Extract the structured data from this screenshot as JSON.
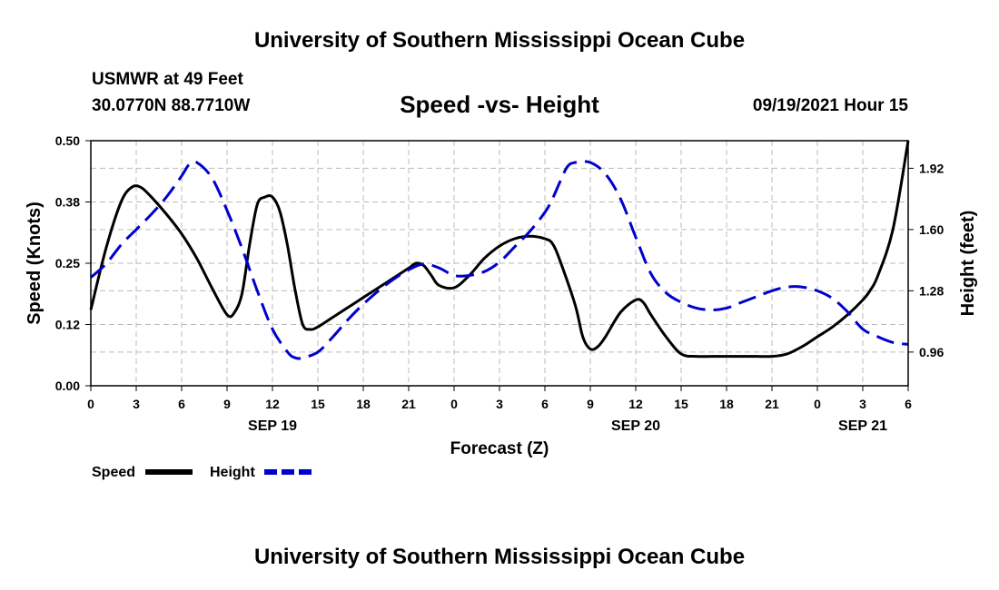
{
  "header": {
    "title_top": "University of Southern Mississippi Ocean Cube",
    "title_bottom": "University of Southern Mississippi Ocean Cube",
    "station": "USMWR at 49 Feet",
    "coords": "30.0770N  88.7710W",
    "run_time": "09/19/2021 Hour 15"
  },
  "chart_data": {
    "type": "line",
    "title": "Speed -vs- Height",
    "xlabel": "Forecast (Z)",
    "ylabel": "Speed (Knots)",
    "y2label": "Height (feet)",
    "x_unit": "hours from SEP 19 00Z",
    "xlim": [
      0,
      54
    ],
    "ylim": [
      0,
      0.5
    ],
    "y2lim": [
      0.784,
      2.064
    ],
    "x_ticks": [
      {
        "x": 0,
        "label": "0"
      },
      {
        "x": 3,
        "label": "3"
      },
      {
        "x": 6,
        "label": "6"
      },
      {
        "x": 9,
        "label": "9"
      },
      {
        "x": 12,
        "label": "12"
      },
      {
        "x": 15,
        "label": "15"
      },
      {
        "x": 18,
        "label": "18"
      },
      {
        "x": 21,
        "label": "21"
      },
      {
        "x": 24,
        "label": "0"
      },
      {
        "x": 27,
        "label": "3"
      },
      {
        "x": 30,
        "label": "6"
      },
      {
        "x": 33,
        "label": "9"
      },
      {
        "x": 36,
        "label": "12"
      },
      {
        "x": 39,
        "label": "15"
      },
      {
        "x": 42,
        "label": "18"
      },
      {
        "x": 45,
        "label": "21"
      },
      {
        "x": 48,
        "label": "0"
      },
      {
        "x": 51,
        "label": "3"
      },
      {
        "x": 54,
        "label": "6"
      }
    ],
    "date_labels": [
      {
        "x": 12,
        "label": "SEP 19"
      },
      {
        "x": 36,
        "label": "SEP 20"
      },
      {
        "x": 51,
        "label": "SEP 21"
      }
    ],
    "y_ticks": [
      {
        "value": 0,
        "label": "0.00"
      },
      {
        "value": 0.125,
        "label": "0.12"
      },
      {
        "value": 0.25,
        "label": "0.25"
      },
      {
        "value": 0.375,
        "label": "0.38"
      },
      {
        "value": 0.5,
        "label": "0.50"
      }
    ],
    "y2_ticks": [
      {
        "value": 0.96,
        "label": "0.96"
      },
      {
        "value": 1.28,
        "label": "1.28"
      },
      {
        "value": 1.6,
        "label": "1.60"
      },
      {
        "value": 1.92,
        "label": "1.92"
      }
    ],
    "series": [
      {
        "name": "Speed",
        "axis": "left",
        "color": "#000000",
        "style": "solid",
        "x": [
          0,
          1,
          2,
          2.7,
          3.3,
          4,
          5,
          6,
          7,
          8,
          9,
          9.5,
          10,
          10.5,
          11,
          11.5,
          12,
          12.5,
          13,
          13.5,
          14,
          14.5,
          15,
          16,
          17,
          18,
          19,
          20,
          21,
          21.5,
          22,
          22.5,
          23,
          24,
          25,
          26,
          27,
          28,
          29,
          30,
          30.5,
          31,
          32,
          32.5,
          33,
          33.5,
          34,
          35,
          36,
          36.5,
          37,
          38,
          39,
          40,
          41,
          42,
          43,
          44,
          45,
          46,
          47,
          48,
          49,
          50,
          51,
          51.5,
          52,
          53,
          54
        ],
        "values": [
          0.155,
          0.28,
          0.375,
          0.405,
          0.405,
          0.385,
          0.35,
          0.31,
          0.26,
          0.2,
          0.145,
          0.15,
          0.19,
          0.29,
          0.37,
          0.385,
          0.385,
          0.355,
          0.285,
          0.195,
          0.125,
          0.115,
          0.12,
          0.14,
          0.16,
          0.18,
          0.2,
          0.22,
          0.24,
          0.25,
          0.245,
          0.225,
          0.205,
          0.2,
          0.225,
          0.26,
          0.285,
          0.3,
          0.305,
          0.3,
          0.29,
          0.255,
          0.165,
          0.1,
          0.075,
          0.08,
          0.1,
          0.15,
          0.175,
          0.17,
          0.145,
          0.1,
          0.065,
          0.06,
          0.06,
          0.06,
          0.06,
          0.06,
          0.06,
          0.065,
          0.08,
          0.1,
          0.12,
          0.145,
          0.175,
          0.195,
          0.225,
          0.32,
          0.5
        ]
      },
      {
        "name": "Height",
        "axis": "right",
        "color": "#0000cc",
        "style": "dashed",
        "x": [
          0,
          1,
          2,
          3,
          4,
          5,
          6,
          6.5,
          7,
          8,
          9,
          10,
          11,
          12,
          13,
          13.5,
          14,
          15,
          16,
          17,
          18,
          19,
          20,
          21,
          22,
          23,
          24,
          25,
          26,
          27,
          28,
          29,
          30,
          30.5,
          31,
          31.5,
          32,
          33,
          34,
          35,
          36,
          37,
          38,
          39,
          40,
          41,
          42,
          43,
          44,
          45,
          46,
          47,
          48,
          49,
          50,
          51,
          52,
          53,
          54
        ],
        "values": [
          1.35,
          1.42,
          1.52,
          1.6,
          1.68,
          1.77,
          1.88,
          1.94,
          1.95,
          1.87,
          1.7,
          1.5,
          1.28,
          1.08,
          0.96,
          0.93,
          0.93,
          0.96,
          1.04,
          1.13,
          1.21,
          1.28,
          1.34,
          1.39,
          1.42,
          1.4,
          1.36,
          1.36,
          1.38,
          1.43,
          1.51,
          1.59,
          1.69,
          1.76,
          1.85,
          1.93,
          1.95,
          1.95,
          1.89,
          1.76,
          1.56,
          1.37,
          1.27,
          1.22,
          1.19,
          1.18,
          1.19,
          1.22,
          1.25,
          1.28,
          1.3,
          1.3,
          1.28,
          1.24,
          1.17,
          1.08,
          1.04,
          1.01,
          1.0
        ]
      }
    ],
    "legend": [
      {
        "name": "Speed",
        "color": "#000000",
        "style": "solid"
      },
      {
        "name": "Height",
        "color": "#0000cc",
        "style": "dashed"
      }
    ]
  }
}
